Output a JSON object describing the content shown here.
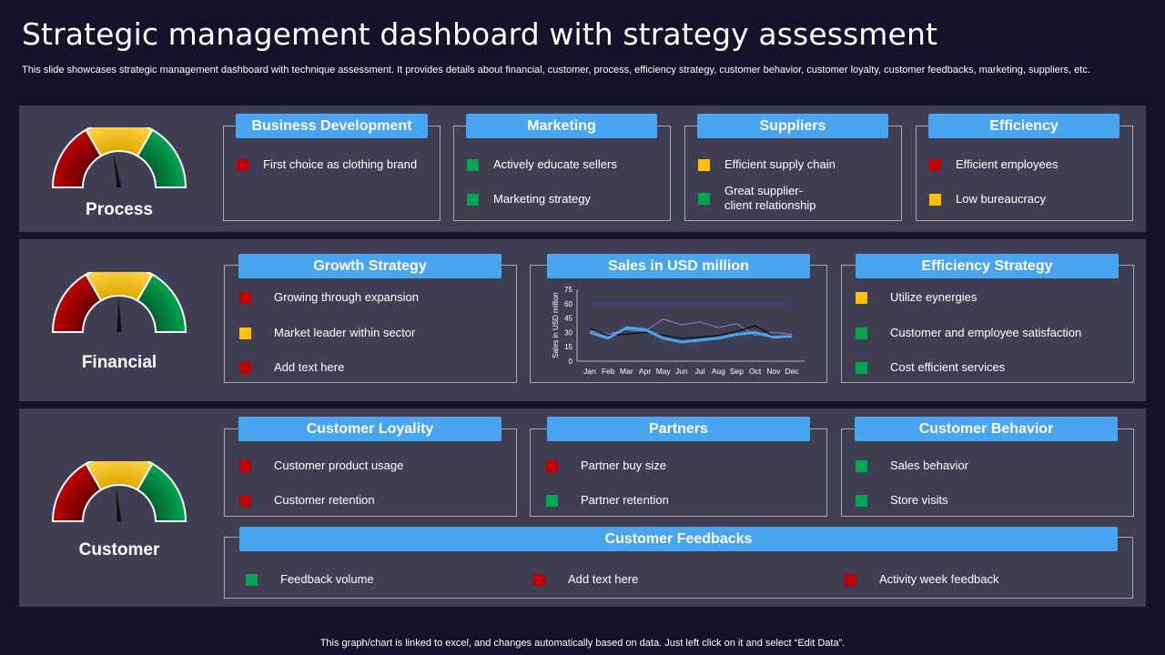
{
  "header": {
    "title": "Strategic management dashboard with strategy assessment",
    "subtitle": "This slide showcases strategic management dashboard with technique assessment. It provides details about financial, customer, process, efficiency strategy, customer behavior, customer loyalty, customer feedbacks, marketing, suppliers, etc."
  },
  "colors": {
    "red": "#c00000",
    "yellow": "#ffc000",
    "green": "#00a650",
    "accent": "#4aa5f0",
    "panel": "#3f3e52",
    "background": "#14132b"
  },
  "process": {
    "label": "Process",
    "gauge_needle": "yellow",
    "boxes": [
      {
        "title": "Business Development",
        "items": [
          {
            "text": "First choice as clothing brand",
            "color": "red"
          }
        ]
      },
      {
        "title": "Marketing",
        "items": [
          {
            "text": "Actively educate sellers",
            "color": "green"
          },
          {
            "text": "Marketing strategy",
            "color": "green"
          }
        ]
      },
      {
        "title": "Suppliers",
        "items": [
          {
            "text": "Efficient supply chain",
            "color": "yellow"
          },
          {
            "text": "Great supplier-",
            "text2": "client relationship",
            "color": "green"
          }
        ]
      },
      {
        "title": "Efficiency",
        "items": [
          {
            "text": "Efficient employees",
            "color": "red"
          },
          {
            "text": "Low bureaucracy",
            "color": "yellow"
          }
        ]
      }
    ]
  },
  "financial": {
    "label": "Financial",
    "gauge_needle": "yellow",
    "growth": {
      "title": "Growth Strategy",
      "items": [
        {
          "text": "Growing through expansion",
          "color": "red"
        },
        {
          "text": "Market leader within sector",
          "color": "yellow"
        },
        {
          "text": "Add text here",
          "color": "red"
        }
      ]
    },
    "sales": {
      "title": "Sales in USD million"
    },
    "efficiency": {
      "title": "Efficiency Strategy",
      "items": [
        {
          "text": "Utilize eynergies",
          "color": "yellow"
        },
        {
          "text": "Customer and employee satisfaction",
          "color": "green"
        },
        {
          "text": "Cost efficient services",
          "color": "green"
        }
      ]
    }
  },
  "customer": {
    "label": "Customer",
    "gauge_needle": "yellow",
    "loyalty": {
      "title": "Customer Loyality",
      "items": [
        {
          "text": "Customer product usage",
          "color": "red"
        },
        {
          "text": "Customer retention",
          "color": "red"
        }
      ]
    },
    "partners": {
      "title": "Partners",
      "items": [
        {
          "text": "Partner buy size",
          "color": "red"
        },
        {
          "text": "Partner retention",
          "color": "green"
        }
      ]
    },
    "behavior": {
      "title": "Customer Behavior",
      "items": [
        {
          "text": "Sales behavior",
          "color": "green"
        },
        {
          "text": "Store visits",
          "color": "green"
        }
      ]
    },
    "feedbacks": {
      "title": "Customer Feedbacks",
      "items": [
        {
          "text": "Feedback volume",
          "color": "green"
        },
        {
          "text": "Add text here",
          "color": "red"
        },
        {
          "text": "Activity week feedback",
          "color": "red"
        }
      ]
    }
  },
  "chart_data": {
    "type": "line",
    "categories": [
      "Jan",
      "Feb",
      "Mar",
      "Apr",
      "May",
      "Jun",
      "Jul",
      "Aug",
      "Sep",
      "Oct",
      "Nov",
      "Dec"
    ],
    "ylabel": "Sales in USD million",
    "ylim": [
      0,
      75
    ],
    "yticks": [
      0,
      15,
      30,
      45,
      60,
      75
    ],
    "grid": false,
    "series": [
      {
        "color": "#4aa5f0",
        "values": [
          30,
          24,
          35,
          33,
          24,
          20,
          22,
          24,
          28,
          30,
          25,
          26
        ]
      },
      {
        "color": "#000000",
        "values": [
          34,
          27,
          28,
          30,
          27,
          24,
          25,
          27,
          31,
          37,
          26,
          27
        ]
      },
      {
        "color": "#8b85c9",
        "values": [
          32,
          28,
          33,
          31,
          44,
          38,
          41,
          35,
          39,
          27,
          30,
          28
        ]
      },
      {
        "color": "#3a3fb0",
        "values": [
          60,
          60,
          60,
          60,
          60,
          60,
          60,
          60,
          60,
          60,
          60,
          60
        ]
      }
    ]
  },
  "footer": {
    "note": "This graph/chart is linked to excel,  and changes automatically based on data. Just left click on it and select “Edit Data”."
  }
}
